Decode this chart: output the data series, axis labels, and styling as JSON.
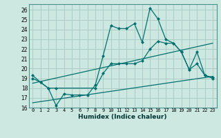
{
  "background_color": "#cce8e0",
  "grid_color": "#aaccc4",
  "line_color": "#007070",
  "xlabel": "Humidex (Indice chaleur)",
  "xlim": [
    -0.5,
    23.5
  ],
  "ylim": [
    16,
    26.6
  ],
  "yticks": [
    16,
    17,
    18,
    19,
    20,
    21,
    22,
    23,
    24,
    25,
    26
  ],
  "xticks": [
    0,
    1,
    2,
    3,
    4,
    5,
    6,
    7,
    8,
    9,
    10,
    11,
    12,
    13,
    14,
    15,
    16,
    17,
    18,
    19,
    20,
    21,
    22,
    23
  ],
  "line1_x": [
    0,
    1,
    2,
    3,
    4,
    5,
    6,
    7,
    8,
    9,
    10,
    11,
    12,
    13,
    14,
    15,
    16,
    17,
    18,
    19,
    20,
    21,
    22,
    23
  ],
  "line1_y": [
    19.3,
    18.6,
    18.0,
    16.2,
    17.4,
    17.3,
    17.3,
    17.3,
    18.3,
    21.3,
    24.4,
    24.1,
    24.1,
    24.6,
    22.7,
    26.2,
    25.1,
    23.0,
    22.6,
    21.7,
    19.9,
    20.5,
    19.3,
    19.1
  ],
  "line2_x": [
    0,
    1,
    2,
    3,
    8,
    9,
    10,
    11,
    12,
    13,
    14,
    15,
    16,
    17,
    18,
    19,
    20,
    21,
    22,
    23
  ],
  "line2_y": [
    19.0,
    18.6,
    18.0,
    18.0,
    18.0,
    19.5,
    20.5,
    20.5,
    20.5,
    20.5,
    20.8,
    22.0,
    22.8,
    22.6,
    22.6,
    21.7,
    19.9,
    21.7,
    19.3,
    19.0
  ],
  "line3_x": [
    0,
    23
  ],
  "line3_y": [
    18.5,
    22.6
  ],
  "line4_x": [
    0,
    23
  ],
  "line4_y": [
    16.5,
    19.2
  ]
}
